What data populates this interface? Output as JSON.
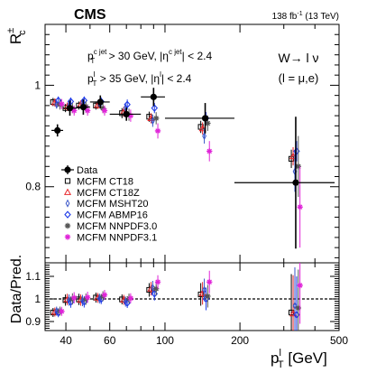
{
  "header": {
    "experiment": "CMS",
    "lumi_prefix": "138 fb",
    "lumi_exp": "-1",
    "lumi_suffix": " (13 TeV)"
  },
  "annotations": {
    "cut_jet_a": "p",
    "cut_jet_a_sub": "T",
    "cut_jet_a_sup": "c jet",
    "cut_jet_b": " > 30 GeV, |η",
    "cut_jet_b_sup": "c jet",
    "cut_jet_c": "| < 2.4",
    "cut_lep_a": "p",
    "cut_lep_a_sub": "T",
    "cut_lep_a_sup": "l",
    "cut_lep_b": " > 35 GeV, |η",
    "cut_lep_b_sup": "l",
    "cut_lep_c": "| < 2.4",
    "process": "W→ l ν",
    "lepton": "(l = μ,e)"
  },
  "axes": {
    "ylabel_top": "R",
    "ylabel_top_sub": "c",
    "ylabel_top_sup": "±",
    "ylabel_bottom": "Data/Pred.",
    "xlabel": "p",
    "xlabel_sub": "T",
    "xlabel_sup": "l",
    "xlabel_unit": " [GeV]",
    "x_ticks": [
      "40",
      "60",
      "100",
      "200",
      "500"
    ],
    "y_ticks_top": [
      "0.8",
      "1"
    ],
    "y_ticks_bottom": [
      "0.9",
      "1",
      "1.1"
    ]
  },
  "legend": {
    "items": [
      {
        "label": "Data",
        "marker": "filled-circle",
        "color": "#000000"
      },
      {
        "label": "MCFM CT18",
        "marker": "open-square",
        "color": "#000000"
      },
      {
        "label": "MCFM CT18Z",
        "marker": "open-triangle",
        "color": "#e8272b"
      },
      {
        "label": "MCFM MSHT20",
        "marker": "open-thin-diamond",
        "color": "#3a56c8"
      },
      {
        "label": "MCFM ABMP16",
        "marker": "open-diamond",
        "color": "#1e3ae8"
      },
      {
        "label": "MCFM NNPDF3.0",
        "marker": "star",
        "color": "#555555"
      },
      {
        "label": "MCFM NNPDF3.1",
        "marker": "star",
        "color": "#e024d8"
      }
    ]
  },
  "chart_data": {
    "type": "scatter",
    "x_scale": "log",
    "xlim": [
      33,
      500
    ],
    "panels": [
      {
        "name": "top",
        "ylim": [
          0.65,
          1.12
        ],
        "ylabel": "R_c^±"
      },
      {
        "name": "bottom",
        "ylim": [
          0.86,
          1.16
        ],
        "ylabel": "Data/Pred.",
        "reference_line": 1.0
      }
    ],
    "bins": [
      {
        "low": 35,
        "high": 39,
        "center": 37
      },
      {
        "low": 39,
        "high": 44,
        "center": 41.5
      },
      {
        "low": 44,
        "high": 50,
        "center": 47
      },
      {
        "low": 50,
        "high": 60,
        "center": 55
      },
      {
        "low": 60,
        "high": 80,
        "center": 70
      },
      {
        "low": 80,
        "high": 100,
        "center": 90
      },
      {
        "low": 100,
        "high": 190,
        "center": 145
      },
      {
        "low": 190,
        "high": 480,
        "center": 335
      }
    ],
    "series": [
      {
        "name": "Data",
        "values": [
          0.911,
          0.955,
          0.957,
          0.967,
          0.943,
          0.977,
          0.935,
          0.808
        ],
        "errors": [
          0.012,
          0.015,
          0.015,
          0.013,
          0.013,
          0.018,
          0.03,
          0.13
        ]
      },
      {
        "name": "MCFM CT18",
        "values": [
          0.967,
          0.955,
          0.96,
          0.96,
          0.945,
          0.938,
          0.918,
          0.855
        ],
        "errors": [
          0.008,
          0.008,
          0.008,
          0.008,
          0.01,
          0.01,
          0.012,
          0.018
        ]
      },
      {
        "name": "MCFM CT18Z",
        "values": [
          0.966,
          0.958,
          0.962,
          0.961,
          0.948,
          0.935,
          0.915,
          0.86
        ],
        "errors": [
          0.008,
          0.008,
          0.008,
          0.008,
          0.01,
          0.01,
          0.012,
          0.018
        ]
      },
      {
        "name": "MCFM MSHT20",
        "values": [
          0.962,
          0.96,
          0.965,
          0.965,
          0.955,
          0.93,
          0.9,
          0.83
        ],
        "errors": [
          0.008,
          0.008,
          0.008,
          0.008,
          0.01,
          0.012,
          0.015,
          0.04
        ]
      },
      {
        "name": "MCFM ABMP16",
        "values": [
          0.97,
          0.968,
          0.97,
          0.968,
          0.962,
          0.955,
          0.935,
          0.87
        ],
        "errors": [
          0.008,
          0.008,
          0.008,
          0.008,
          0.01,
          0.01,
          0.012,
          0.02
        ]
      },
      {
        "name": "MCFM NNPDF3.0",
        "values": [
          0.962,
          0.955,
          0.958,
          0.955,
          0.942,
          0.935,
          0.925,
          0.84
        ],
        "errors": [
          0.01,
          0.01,
          0.01,
          0.01,
          0.012,
          0.012,
          0.015,
          0.06
        ]
      },
      {
        "name": "MCFM NNPDF3.1",
        "values": [
          0.963,
          0.95,
          0.95,
          0.95,
          0.94,
          0.91,
          0.87,
          0.76
        ],
        "errors": [
          0.01,
          0.01,
          0.01,
          0.01,
          0.012,
          0.015,
          0.02,
          0.08
        ]
      }
    ],
    "ratio": {
      "series": [
        {
          "name": "MCFM CT18",
          "values": [
            0.94,
            0.995,
            0.998,
            1.006,
            0.998,
            1.04,
            1.02,
            0.94
          ]
        },
        {
          "name": "MCFM CT18Z",
          "values": [
            0.942,
            0.998,
            0.995,
            1.005,
            0.996,
            1.045,
            1.025,
            0.935
          ]
        },
        {
          "name": "MCFM MSHT20",
          "values": [
            0.946,
            0.995,
            0.993,
            1.002,
            0.988,
            1.05,
            1.04,
            0.97
          ]
        },
        {
          "name": "MCFM ABMP16",
          "values": [
            0.939,
            0.986,
            0.987,
            0.999,
            0.982,
            1.023,
            1.0,
            0.93
          ]
        },
        {
          "name": "MCFM NNPDF3.0",
          "values": [
            0.946,
            1.0,
            0.999,
            1.012,
            1.002,
            1.045,
            1.012,
            0.96
          ]
        },
        {
          "name": "MCFM NNPDF3.1",
          "values": [
            0.945,
            1.005,
            1.007,
            1.018,
            1.003,
            1.075,
            1.075,
            1.06
          ]
        }
      ],
      "errors": [
        0.02,
        0.025,
        0.025,
        0.022,
        0.022,
        0.03,
        0.05,
        0.17
      ]
    }
  }
}
